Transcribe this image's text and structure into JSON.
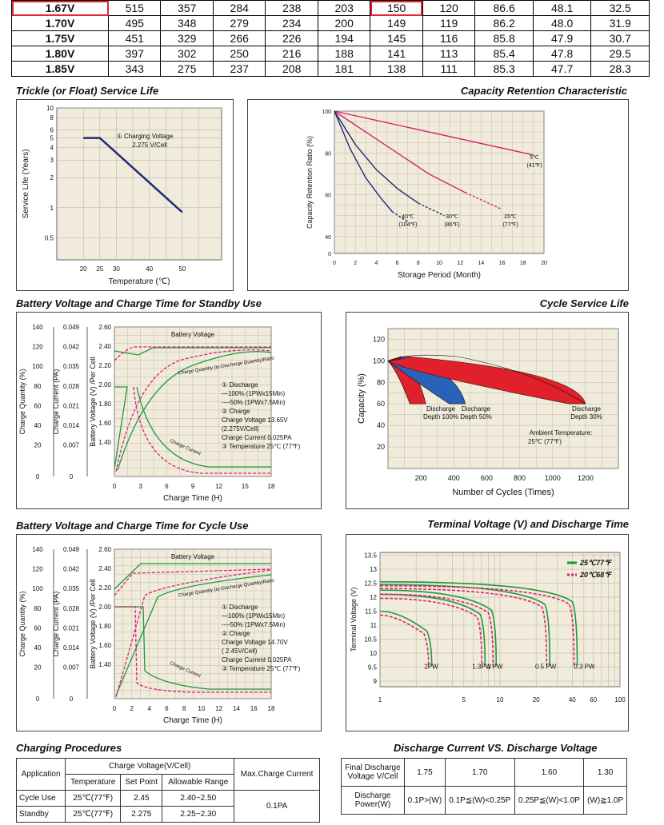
{
  "top_table": {
    "rows": [
      {
        "v": "1.67V",
        "cells": [
          "515",
          "357",
          "284",
          "238",
          "203",
          "150",
          "120",
          "86.6",
          "48.1",
          "32.5"
        ]
      },
      {
        "v": "1.70V",
        "cells": [
          "495",
          "348",
          "279",
          "234",
          "200",
          "149",
          "119",
          "86.2",
          "48.0",
          "31.9"
        ]
      },
      {
        "v": "1.75V",
        "cells": [
          "451",
          "329",
          "266",
          "226",
          "194",
          "145",
          "116",
          "85.8",
          "47.9",
          "30.7"
        ]
      },
      {
        "v": "1.80V",
        "cells": [
          "397",
          "302",
          "250",
          "216",
          "188",
          "141",
          "113",
          "85.4",
          "47.8",
          "29.5"
        ]
      },
      {
        "v": "1.85V",
        "cells": [
          "343",
          "275",
          "237",
          "208",
          "181",
          "138",
          "111",
          "85.3",
          "47.7",
          "28.3"
        ]
      }
    ]
  },
  "titles": {
    "trickle": "Trickle (or Float) Service Life",
    "capacity": "Capacity  Retention  Characteristic",
    "standby": "Battery Voltage and Charge Time for Standby Use",
    "cycle_life": "Cycle Service Life",
    "cycle_use": "Battery Voltage and Charge Time for Cycle Use",
    "terminal": "Terminal Voltage (V) and Discharge Time",
    "charging": "Charging Procedures",
    "discharge": "Discharge   Current  VS.  Discharge  Voltage"
  },
  "chart_data": [
    {
      "id": "trickle",
      "type": "line",
      "xlabel": "Temperature (℃)",
      "ylabel": "Service Life (Years)",
      "xticks": [
        "20",
        "25",
        "30",
        "40",
        "50"
      ],
      "yticks": [
        "10",
        "8",
        "6",
        "5",
        "4",
        "3",
        "2",
        "1",
        "0.5"
      ],
      "annotation": [
        "① Charging Voltage",
        "2.275 V/Cell"
      ],
      "series": [
        {
          "x": [
            20,
            25,
            50
          ],
          "y": [
            5,
            5,
            0.9
          ]
        }
      ]
    },
    {
      "id": "capacity",
      "type": "line",
      "xlabel": "Storage Period (Month)",
      "ylabel": "Capacity Retention Ratio (%)",
      "xticks": [
        "0",
        "2",
        "4",
        "6",
        "8",
        "10",
        "12",
        "14",
        "16",
        "18",
        "20"
      ],
      "yticks": [
        "100",
        "80",
        "60",
        "40",
        "0"
      ],
      "series": [
        {
          "label": [
            "5℃",
            "(41℉)"
          ],
          "color": "#d6246e",
          "x": [
            0,
            19
          ],
          "y": [
            100,
            79
          ]
        },
        {
          "label": [
            "25℃",
            "(77℉)"
          ],
          "color": "#d6246e",
          "x": [
            0,
            3,
            6,
            9,
            12.5,
            16
          ],
          "y": [
            100,
            90,
            80,
            70,
            61,
            53
          ]
        },
        {
          "label": [
            "30℃",
            "(86℉)"
          ],
          "color": "#1d2a7a",
          "x": [
            0,
            2,
            4,
            6,
            8,
            10.5
          ],
          "y": [
            100,
            84,
            72,
            63,
            56,
            50
          ]
        },
        {
          "label": [
            "40℃",
            "(104℉)"
          ],
          "color": "#1d2a7a",
          "x": [
            0,
            1.5,
            3,
            4.5,
            5.5,
            7
          ],
          "y": [
            100,
            82,
            68,
            58,
            52,
            47
          ]
        }
      ]
    },
    {
      "id": "standby",
      "type": "line",
      "xlabel": "Charge Time (H)",
      "ylabels": [
        "Charge Quantity (%)",
        "Charge Current (PA)",
        "Battery Voltage (V) /Per Cell"
      ],
      "xticks": [
        "0",
        "3",
        "6",
        "9",
        "12",
        "15",
        "18"
      ],
      "y1ticks": [
        "140",
        "120",
        "100",
        "80",
        "60",
        "40",
        "20",
        "0"
      ],
      "y2ticks": [
        "0.049",
        "0.042",
        "0.035",
        "0.028",
        "0.021",
        "0.014",
        "0.007",
        "0"
      ],
      "y3ticks": [
        "2.60",
        "2.40",
        "2.20",
        "2.00",
        "1.80",
        "1.60",
        "1.40"
      ],
      "labels": {
        "battery_voltage": "Battery Voltage",
        "charge_quantity": "Charge Quantity (to-Discharge Quantity)Ratio",
        "charge_current": "Charge Current"
      },
      "notes": [
        "① Discharge",
        "—100% (1PWx15Min)",
        "----50% (1PWx7.5Min)",
        "② Charge",
        "Charge Voltage 13.65V",
        "(2.275V/Cell)",
        "Charge Current 0.025PA",
        "③ Temperature 25℃ (77℉)"
      ]
    },
    {
      "id": "cycle_life",
      "type": "line",
      "xlabel": "Number of Cycles (Times)",
      "ylabel": "Capacity (%)",
      "xticks": [
        "200",
        "400",
        "600",
        "800",
        "1000",
        "1200"
      ],
      "yticks": [
        "120",
        "100",
        "80",
        "60",
        "40",
        "20"
      ],
      "series": [
        {
          "label": [
            "Discharge",
            "Depth 100%"
          ],
          "color": "#e0202a",
          "x_end": 230
        },
        {
          "label": [
            "Discharge",
            "Depth 50%"
          ],
          "color": "#2a62b8",
          "x_end": 470
        },
        {
          "label": [
            "Discharge",
            "Depth 30%"
          ],
          "color": "#e0202a",
          "x_end": 1200
        }
      ],
      "annotation": [
        "Ambient Temperature:",
        "25℃ (77℉)"
      ]
    },
    {
      "id": "cycle_use",
      "type": "line",
      "xlabel": "Charge Time (H)",
      "ylabels": [
        "Charge Quantity (%)",
        "Charge Current (PA)",
        "Battery Voltage (V) /Per Cell"
      ],
      "xticks": [
        "0",
        "2",
        "4",
        "6",
        "8",
        "10",
        "12",
        "14",
        "16",
        "18"
      ],
      "y1ticks": [
        "140",
        "120",
        "100",
        "80",
        "60",
        "40",
        "20",
        "0"
      ],
      "y2ticks": [
        "0.049",
        "0.042",
        "0.035",
        "0.028",
        "0.021",
        "0.014",
        "0.007",
        "0"
      ],
      "y3ticks": [
        "2.60",
        "2.40",
        "2.20",
        "2.00",
        "1.80",
        "1.60",
        "1.40"
      ],
      "labels": {
        "battery_voltage": "Battery Voltage",
        "charge_quantity": "Charge Quantity (to-Discharge Quantity)Ratio",
        "charge_current": "Charge Current"
      },
      "notes": [
        "① Discharge",
        "—100% (1PWx15Min)",
        "----50% (1PWx7.5Min)",
        "② Charge",
        "Charge Voltage  14.70V",
        "( 2.45V/Cell)",
        "Charge Current 0.025PA",
        "③ Temperature 25℃ (77℉)"
      ]
    },
    {
      "id": "terminal",
      "type": "line",
      "xlabel": "",
      "ylabel": "Terminal Voltage (V)",
      "xticks": [
        "1",
        "5",
        "10",
        "20",
        "40",
        "60",
        "100"
      ],
      "yticks": [
        "13.5",
        "13",
        "12.5",
        "12",
        "11.5",
        "11",
        "10.5",
        "10",
        "9.5",
        "9"
      ],
      "legend": [
        {
          "label": "25℃77℉",
          "color": "#1a9a3a"
        },
        {
          "label": "20℃68℉",
          "color": "#d6246e"
        }
      ],
      "curves": [
        "2PW",
        "1.3PW",
        "1 PW",
        "0.5 PW",
        "0.3 PW"
      ]
    }
  ],
  "charging": {
    "h_app": "Application",
    "h_cv": "Charge Voltage(V/Cell)",
    "h_temp": "Temperature",
    "h_set": "Set Point",
    "h_range": "Allowable Range",
    "h_max": "Max.Charge Current",
    "rows": [
      {
        "app": "Cycle Use",
        "temp": "25℃(77℉)",
        "set": "2.45",
        "range": "2.40~2.50"
      },
      {
        "app": "Standby",
        "temp": "25℃(77℉)",
        "set": "2.275",
        "range": "2.25~2.30"
      }
    ],
    "max": "0.1PA"
  },
  "discharge": {
    "h1": "Final Discharge",
    "h2": "Voltage V/Cell",
    "v": [
      "1.75",
      "1.70",
      "1.60",
      "1.30"
    ],
    "p1": "Discharge",
    "p2": "Power(W)",
    "p": [
      "0.1P>(W)",
      "0.1P≦(W)<0.25P",
      "0.25P≦(W)<1.0P",
      "(W)≧1.0P"
    ]
  }
}
